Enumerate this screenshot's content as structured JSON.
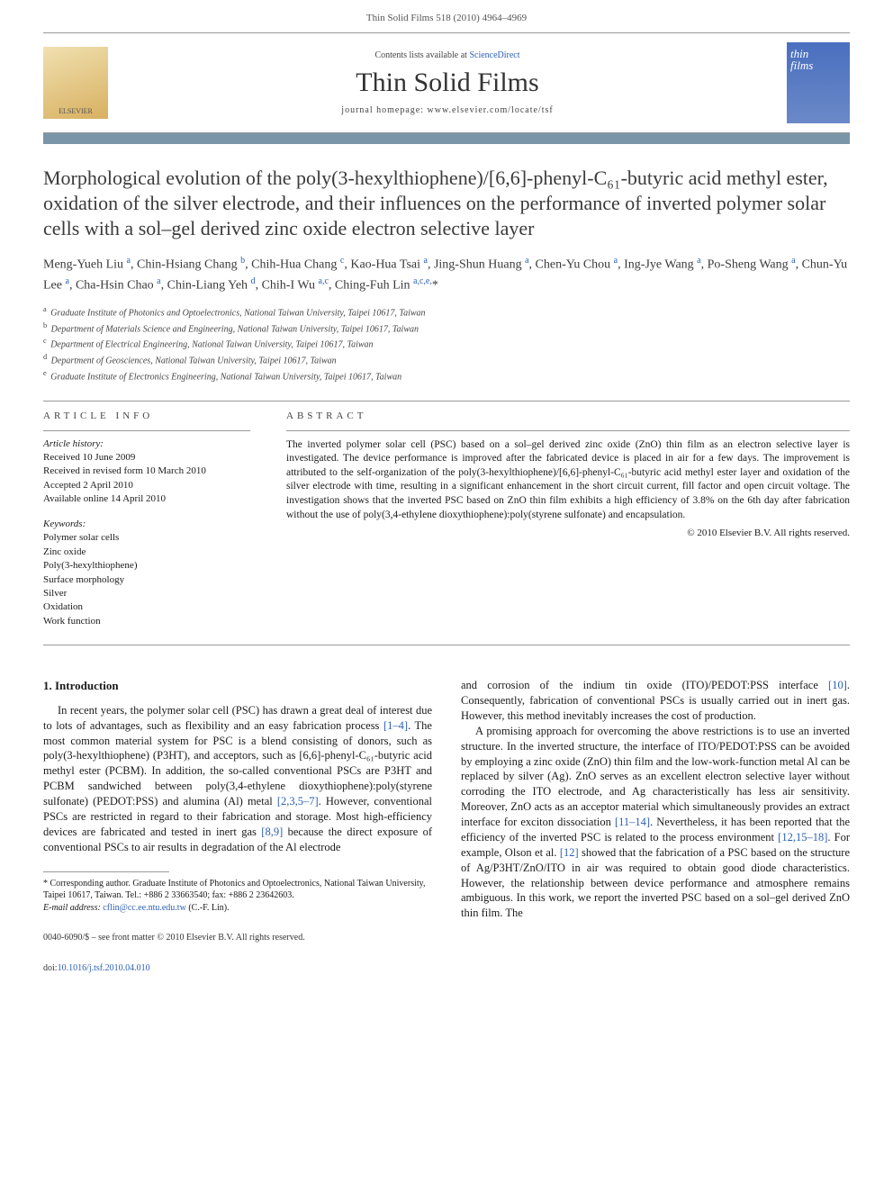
{
  "header": {
    "running": "Thin Solid Films 518 (2010) 4964–4969"
  },
  "banner": {
    "publisher_logo": "ELSEVIER",
    "sd_prefix": "Contents lists available at ",
    "sd_link": "ScienceDirect",
    "journal_name": "Thin Solid Films",
    "homepage_prefix": "journal homepage: ",
    "homepage_url": "www.elsevier.com/locate/tsf",
    "cover_line1": "thin",
    "cover_line2": "films"
  },
  "article": {
    "title": "Morphological evolution of the poly(3-hexylthiophene)/[6,6]-phenyl-C₆₁-butyric acid methyl ester, oxidation of the silver electrode, and their influences on the performance of inverted polymer solar cells with a sol–gel derived zinc oxide electron selective layer",
    "authors_html": "Meng-Yueh Liu <sup>a</sup>, Chin-Hsiang Chang <sup>b</sup>, Chih-Hua Chang <sup>c</sup>, Kao-Hua Tsai <sup>a</sup>, Jing-Shun Huang <sup>a</sup>, Chen-Yu Chou <sup>a</sup>, Ing-Jye Wang <sup>a</sup>, Po-Sheng Wang <sup>a</sup>, Chun-Yu Lee <sup>a</sup>, Cha-Hsin Chao <sup>a</sup>, Chin-Liang Yeh <sup>d</sup>, Chih-I Wu <sup>a,c</sup>, Ching-Fuh Lin <sup>a,c,e,</sup>*",
    "affiliations": [
      {
        "sup": "a",
        "text": "Graduate Institute of Photonics and Optoelectronics, National Taiwan University, Taipei 10617, Taiwan"
      },
      {
        "sup": "b",
        "text": "Department of Materials Science and Engineering, National Taiwan University, Taipei 10617, Taiwan"
      },
      {
        "sup": "c",
        "text": "Department of Electrical Engineering, National Taiwan University, Taipei 10617, Taiwan"
      },
      {
        "sup": "d",
        "text": "Department of Geosciences, National Taiwan University, Taipei 10617, Taiwan"
      },
      {
        "sup": "e",
        "text": "Graduate Institute of Electronics Engineering, National Taiwan University, Taipei 10617, Taiwan"
      }
    ]
  },
  "info": {
    "heading": "ARTICLE INFO",
    "history_label": "Article history:",
    "history": [
      "Received 10 June 2009",
      "Received in revised form 10 March 2010",
      "Accepted 2 April 2010",
      "Available online 14 April 2010"
    ],
    "keywords_label": "Keywords:",
    "keywords": [
      "Polymer solar cells",
      "Zinc oxide",
      "Poly(3-hexylthiophene)",
      "Surface morphology",
      "Silver",
      "Oxidation",
      "Work function"
    ]
  },
  "abstract": {
    "heading": "ABSTRACT",
    "text": "The inverted polymer solar cell (PSC) based on a sol–gel derived zinc oxide (ZnO) thin film as an electron selective layer is investigated. The device performance is improved after the fabricated device is placed in air for a few days. The improvement is attributed to the self-organization of the poly(3-hexylthiophene)/[6,6]-phenyl-C₆₁-butyric acid methyl ester layer and oxidation of the silver electrode with time, resulting in a significant enhancement in the short circuit current, fill factor and open circuit voltage. The investigation shows that the inverted PSC based on ZnO thin film exhibits a high efficiency of 3.8% on the 6th day after fabrication without the use of poly(3,4-ethylene dioxythiophene):poly(styrene sulfonate) and encapsulation.",
    "copyright": "© 2010 Elsevier B.V. All rights reserved."
  },
  "body": {
    "intro_heading": "1. Introduction",
    "left_p1_a": "In recent years, the polymer solar cell (PSC) has drawn a great deal of interest due to lots of advantages, such as flexibility and an easy fabrication process ",
    "ref_1_4": "[1–4]",
    "left_p1_b": ". The most common material system for PSC is a blend consisting of donors, such as poly(3-hexylthiophene) (P3HT), and acceptors, such as [6,6]-phenyl-C₆₁-butyric acid methyl ester (PCBM). In addition, the so-called conventional PSCs are P3HT and PCBM sandwiched between poly(3,4-ethylene dioxythiophene):poly(styrene sulfonate) (PEDOT:PSS) and alumina (Al) metal ",
    "ref_2357": "[2,3,5–7]",
    "left_p1_c": ". However, conventional PSCs are restricted in regard to their fabrication and storage. Most high-efficiency devices are fabricated and tested in inert gas ",
    "ref_8_9": "[8,9]",
    "left_p1_d": " because the direct exposure of conventional PSCs to air results in degradation of the Al electrode",
    "right_p1_a": "and corrosion of the indium tin oxide (ITO)/PEDOT:PSS interface ",
    "ref_10": "[10]",
    "right_p1_b": ". Consequently, fabrication of conventional PSCs is usually carried out in inert gas. However, this method inevitably increases the cost of production.",
    "right_p2_a": "A promising approach for overcoming the above restrictions is to use an inverted structure. In the inverted structure, the interface of ITO/PEDOT:PSS can be avoided by employing a zinc oxide (ZnO) thin film and the low-work-function metal Al can be replaced by silver (Ag). ZnO serves as an excellent electron selective layer without corroding the ITO electrode, and Ag characteristically has less air sensitivity. Moreover, ZnO acts as an acceptor material which simultaneously provides an extract interface for exciton dissociation ",
    "ref_11_14": "[11–14]",
    "right_p2_b": ". Nevertheless, it has been reported that the efficiency of the inverted PSC is related to the process environment ",
    "ref_12_15_18": "[12,15–18]",
    "right_p2_c": ". For example, Olson et al. ",
    "ref_12": "[12]",
    "right_p2_d": " showed that the fabrication of a PSC based on the structure of Ag/P3HT/ZnO/ITO in air was required to obtain good diode characteristics. However, the relationship between device performance and atmosphere remains ambiguous. In this work, we report the inverted PSC based on a sol–gel derived ZnO thin film. The"
  },
  "footnote": {
    "corr": "* Corresponding author. Graduate Institute of Photonics and Optoelectronics, National Taiwan University, Taipei 10617, Taiwan. Tel.: +886 2 33663540; fax: +886 2 23642603.",
    "email_label": "E-mail address:",
    "email": "cflin@cc.ee.ntu.edu.tw",
    "email_who": " (C.-F. Lin)."
  },
  "footer": {
    "line1": "0040-6090/$ – see front matter © 2010 Elsevier B.V. All rights reserved.",
    "doi_prefix": "doi:",
    "doi": "10.1016/j.tsf.2010.04.010"
  },
  "colors": {
    "link": "#2b5fb4",
    "accent_bar": "#7a94a8",
    "rule": "#999999"
  }
}
